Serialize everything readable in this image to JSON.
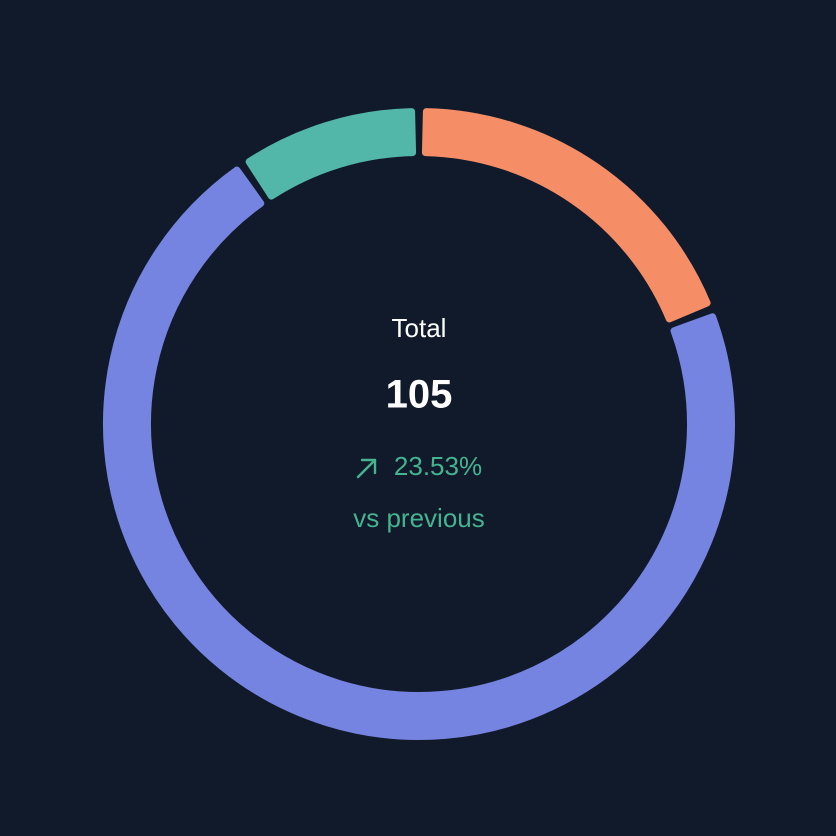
{
  "chart_data": {
    "type": "donut",
    "values": [
      20,
      75,
      10
    ],
    "colors": [
      "#f58d67",
      "#7684e1",
      "#52b7a9"
    ],
    "center": {
      "title": "Total",
      "total": 105,
      "change": "23.53%",
      "comparison": "vs previous"
    }
  }
}
